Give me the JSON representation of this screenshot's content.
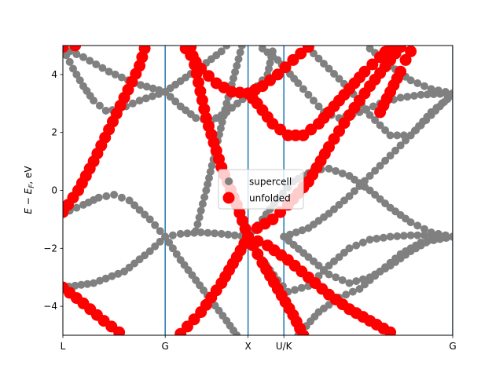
{
  "chart_data": {
    "type": "scatter",
    "ylabel": "E − E_F, eV",
    "ylabel_parts": {
      "main": "E − E",
      "sub": "F",
      "unit": ", eV"
    },
    "ylim": [
      -5,
      5
    ],
    "xlim": [
      0,
      3.81
    ],
    "yticks": [
      4,
      2,
      0,
      -2,
      -4
    ],
    "ytick_labels": [
      "4",
      "2",
      "0",
      "−2",
      "−4"
    ],
    "kpoints": [
      {
        "label": "L",
        "x": 0.0
      },
      {
        "label": "G",
        "x": 1.0
      },
      {
        "label": "X",
        "x": 1.81
      },
      {
        "label": "U/K",
        "x": 2.16
      },
      {
        "label": "G",
        "x": 3.81
      }
    ],
    "legend": {
      "position": "center",
      "entries": [
        "supercell",
        "unfolded"
      ]
    },
    "colors": {
      "supercell": "#808080",
      "unfolded": "#ff0000",
      "kline": "#1f77b4"
    },
    "series": [
      {
        "name": "supercell",
        "bands": [
          [
            [
              0.0,
              -0.8
            ],
            [
              0.2,
              -0.5
            ],
            [
              0.35,
              -0.25
            ],
            [
              0.5,
              -0.15
            ],
            [
              0.65,
              -0.35
            ],
            [
              0.85,
              -1.0
            ],
            [
              1.0,
              -1.6
            ]
          ],
          [
            [
              0.0,
              -3.35
            ],
            [
              0.3,
              -3.2
            ],
            [
              0.6,
              -2.8
            ],
            [
              0.85,
              -2.1
            ],
            [
              1.0,
              -1.6
            ]
          ],
          [
            [
              0.0,
              4.9
            ],
            [
              0.2,
              4.6
            ],
            [
              0.45,
              4.1
            ],
            [
              0.7,
              3.7
            ],
            [
              1.0,
              3.4
            ]
          ],
          [
            [
              0.0,
              4.9
            ],
            [
              0.1,
              4.2
            ],
            [
              0.2,
              3.6
            ],
            [
              0.3,
              3.1
            ],
            [
              0.42,
              2.75
            ],
            [
              0.55,
              2.8
            ],
            [
              0.75,
              3.1
            ],
            [
              1.0,
              3.4
            ]
          ],
          [
            [
              1.0,
              -1.6
            ],
            [
              1.15,
              -1.5
            ],
            [
              1.35,
              -1.45
            ],
            [
              1.55,
              -1.5
            ],
            [
              1.81,
              -1.6
            ]
          ],
          [
            [
              1.0,
              -1.6
            ],
            [
              1.15,
              -2.4
            ],
            [
              1.3,
              -3.1
            ],
            [
              1.45,
              -3.8
            ],
            [
              1.6,
              -4.5
            ],
            [
              1.7,
              -5.0
            ]
          ],
          [
            [
              1.0,
              3.4
            ],
            [
              1.15,
              2.9
            ],
            [
              1.3,
              2.5
            ],
            [
              1.45,
              2.4
            ],
            [
              1.6,
              2.7
            ],
            [
              1.81,
              3.3
            ]
          ],
          [
            [
              1.0,
              3.4
            ],
            [
              1.2,
              3.9
            ],
            [
              1.4,
              4.4
            ],
            [
              1.55,
              4.8
            ],
            [
              1.6,
              5.0
            ]
          ],
          [
            [
              1.3,
              -1.4
            ],
            [
              1.4,
              0.0
            ],
            [
              1.5,
              1.5
            ],
            [
              1.6,
              3.0
            ],
            [
              1.7,
              4.3
            ],
            [
              1.75,
              5.0
            ]
          ],
          [
            [
              1.81,
              3.3
            ],
            [
              1.9,
              3.6
            ],
            [
              2.0,
              4.0
            ],
            [
              2.05,
              4.8
            ]
          ],
          [
            [
              1.81,
              -1.6
            ],
            [
              1.95,
              -2.4
            ],
            [
              2.1,
              -3.1
            ],
            [
              2.2,
              -3.5
            ],
            [
              2.4,
              -3.3
            ],
            [
              2.6,
              -2.6
            ],
            [
              2.8,
              -2.0
            ],
            [
              3.0,
              -1.7
            ],
            [
              3.2,
              -1.6
            ],
            [
              3.4,
              -1.55
            ],
            [
              3.6,
              -1.55
            ],
            [
              3.81,
              -1.6
            ]
          ],
          [
            [
              1.81,
              -1.6
            ],
            [
              1.95,
              -1.0
            ],
            [
              2.1,
              -0.3
            ],
            [
              2.25,
              0.3
            ],
            [
              2.45,
              0.7
            ],
            [
              2.6,
              0.75
            ],
            [
              2.8,
              0.5
            ],
            [
              3.0,
              0.0
            ],
            [
              3.2,
              -0.6
            ],
            [
              3.4,
              -1.1
            ],
            [
              3.6,
              -1.45
            ],
            [
              3.81,
              -1.6
            ]
          ],
          [
            [
              2.16,
              -1.6
            ],
            [
              2.4,
              -2.3
            ],
            [
              2.6,
              -2.9
            ],
            [
              2.8,
              -3.2
            ],
            [
              3.0,
              -3.0
            ],
            [
              3.2,
              -2.6
            ],
            [
              3.4,
              -2.1
            ],
            [
              3.6,
              -1.7
            ],
            [
              3.81,
              -1.6
            ]
          ],
          [
            [
              2.3,
              -5.0
            ],
            [
              2.5,
              -4.2
            ],
            [
              2.7,
              -3.7
            ],
            [
              2.9,
              -3.4
            ],
            [
              3.1,
              -2.8
            ],
            [
              3.3,
              -2.2
            ],
            [
              3.5,
              -1.8
            ],
            [
              3.81,
              -1.6
            ]
          ],
          [
            [
              2.16,
              -1.6
            ],
            [
              2.4,
              -1.3
            ],
            [
              2.6,
              -0.8
            ],
            [
              2.8,
              -0.2
            ],
            [
              3.0,
              0.5
            ],
            [
              3.2,
              1.2
            ],
            [
              3.4,
              1.9
            ],
            [
              3.6,
              2.7
            ],
            [
              3.81,
              3.3
            ]
          ],
          [
            [
              1.95,
              4.9
            ],
            [
              2.1,
              4.5
            ],
            [
              2.3,
              3.7
            ],
            [
              2.45,
              3.1
            ],
            [
              2.55,
              2.7
            ],
            [
              2.7,
              2.5
            ],
            [
              2.9,
              2.7
            ],
            [
              3.1,
              3.0
            ],
            [
              3.3,
              3.2
            ],
            [
              3.5,
              3.3
            ],
            [
              3.81,
              3.35
            ]
          ],
          [
            [
              2.4,
              4.9
            ],
            [
              2.6,
              4.2
            ],
            [
              2.8,
              3.5
            ],
            [
              3.0,
              2.6
            ],
            [
              3.2,
              1.9
            ],
            [
              3.4,
              1.9
            ],
            [
              3.6,
              2.6
            ],
            [
              3.81,
              3.35
            ]
          ],
          [
            [
              3.0,
              4.9
            ],
            [
              3.2,
              4.3
            ],
            [
              3.4,
              3.8
            ],
            [
              3.6,
              3.5
            ],
            [
              3.81,
              3.35
            ]
          ]
        ]
      },
      {
        "name": "unfolded",
        "bands": [
          [
            [
              0.0,
              -0.75
            ],
            [
              0.15,
              0.0
            ],
            [
              0.3,
              1.0
            ],
            [
              0.45,
              2.1
            ],
            [
              0.6,
              3.2
            ],
            [
              0.75,
              4.3
            ],
            [
              0.8,
              4.9
            ]
          ],
          [
            [
              0.0,
              -3.35
            ],
            [
              0.2,
              -3.9
            ],
            [
              0.4,
              -4.5
            ],
            [
              0.55,
              -4.9
            ]
          ],
          [
            [
              0.0,
              4.95
            ],
            [
              0.12,
              5.0
            ]
          ],
          [
            [
              1.2,
              4.9
            ],
            [
              1.35,
              4.2
            ],
            [
              1.5,
              3.7
            ],
            [
              1.65,
              3.4
            ],
            [
              1.81,
              3.35
            ],
            [
              1.95,
              3.6
            ],
            [
              2.1,
              4.0
            ],
            [
              2.25,
              4.5
            ],
            [
              2.4,
              4.95
            ]
          ],
          [
            [
              1.25,
              4.95
            ],
            [
              1.4,
              2.5
            ],
            [
              1.55,
              0.8
            ],
            [
              1.7,
              -0.5
            ],
            [
              1.81,
              -1.6
            ],
            [
              1.95,
              -2.5
            ],
            [
              2.1,
              -3.4
            ],
            [
              2.25,
              -4.3
            ],
            [
              2.35,
              -5.0
            ]
          ],
          [
            [
              1.81,
              -1.6
            ],
            [
              1.9,
              -1.3
            ],
            [
              2.05,
              -1.0
            ],
            [
              2.2,
              -0.5
            ],
            [
              2.4,
              0.3
            ],
            [
              2.6,
              1.5
            ],
            [
              2.8,
              2.6
            ],
            [
              3.0,
              3.6
            ],
            [
              3.2,
              4.5
            ],
            [
              3.3,
              4.95
            ]
          ],
          [
            [
              1.81,
              -1.6
            ],
            [
              2.0,
              -1.9
            ],
            [
              2.2,
              -2.4
            ],
            [
              2.4,
              -3.0
            ],
            [
              2.6,
              -3.6
            ],
            [
              2.8,
              -4.1
            ],
            [
              3.0,
              -4.5
            ],
            [
              3.2,
              -4.9
            ]
          ],
          [
            [
              1.15,
              -4.95
            ],
            [
              1.35,
              -4.2
            ],
            [
              1.55,
              -3.2
            ],
            [
              1.7,
              -2.3
            ],
            [
              1.81,
              -1.6
            ]
          ],
          [
            [
              1.81,
              3.35
            ],
            [
              1.9,
              3.0
            ],
            [
              2.05,
              2.3
            ],
            [
              2.2,
              1.9
            ],
            [
              2.35,
              1.9
            ],
            [
              2.5,
              2.3
            ],
            [
              2.65,
              2.9
            ],
            [
              2.8,
              3.5
            ],
            [
              2.95,
              4.1
            ],
            [
              3.1,
              4.6
            ],
            [
              3.2,
              4.95
            ]
          ],
          [
            [
              3.1,
              2.7
            ],
            [
              3.2,
              3.4
            ],
            [
              3.3,
              4.1
            ],
            [
              3.35,
              4.5
            ],
            [
              3.4,
              4.8
            ]
          ]
        ]
      }
    ]
  }
}
